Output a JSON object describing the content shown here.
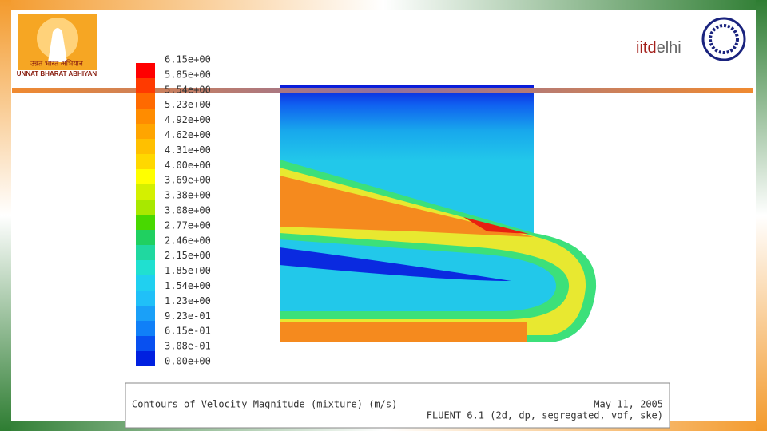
{
  "header": {
    "logo_hindi": "उन्नत भारत अभियान",
    "logo_english": "UNNAT BHARAT ABHIYAN",
    "iit_logo": {
      "prefix": "iitd",
      "suffix": "elhi"
    }
  },
  "colorbar": {
    "labels": [
      "6.15e+00",
      "5.85e+00",
      "5.54e+00",
      "5.23e+00",
      "4.92e+00",
      "4.62e+00",
      "4.31e+00",
      "4.00e+00",
      "3.69e+00",
      "3.38e+00",
      "3.08e+00",
      "2.77e+00",
      "2.46e+00",
      "2.15e+00",
      "1.85e+00",
      "1.54e+00",
      "1.23e+00",
      "9.23e-01",
      "6.15e-01",
      "3.08e-01",
      "0.00e+00"
    ]
  },
  "caption": {
    "title": "Contours of Velocity Magnitude (mixture) (m/s)",
    "date": "May 11, 2005",
    "solver": "FLUENT 6.1 (2d, dp, segregated, vof, ske)"
  }
}
